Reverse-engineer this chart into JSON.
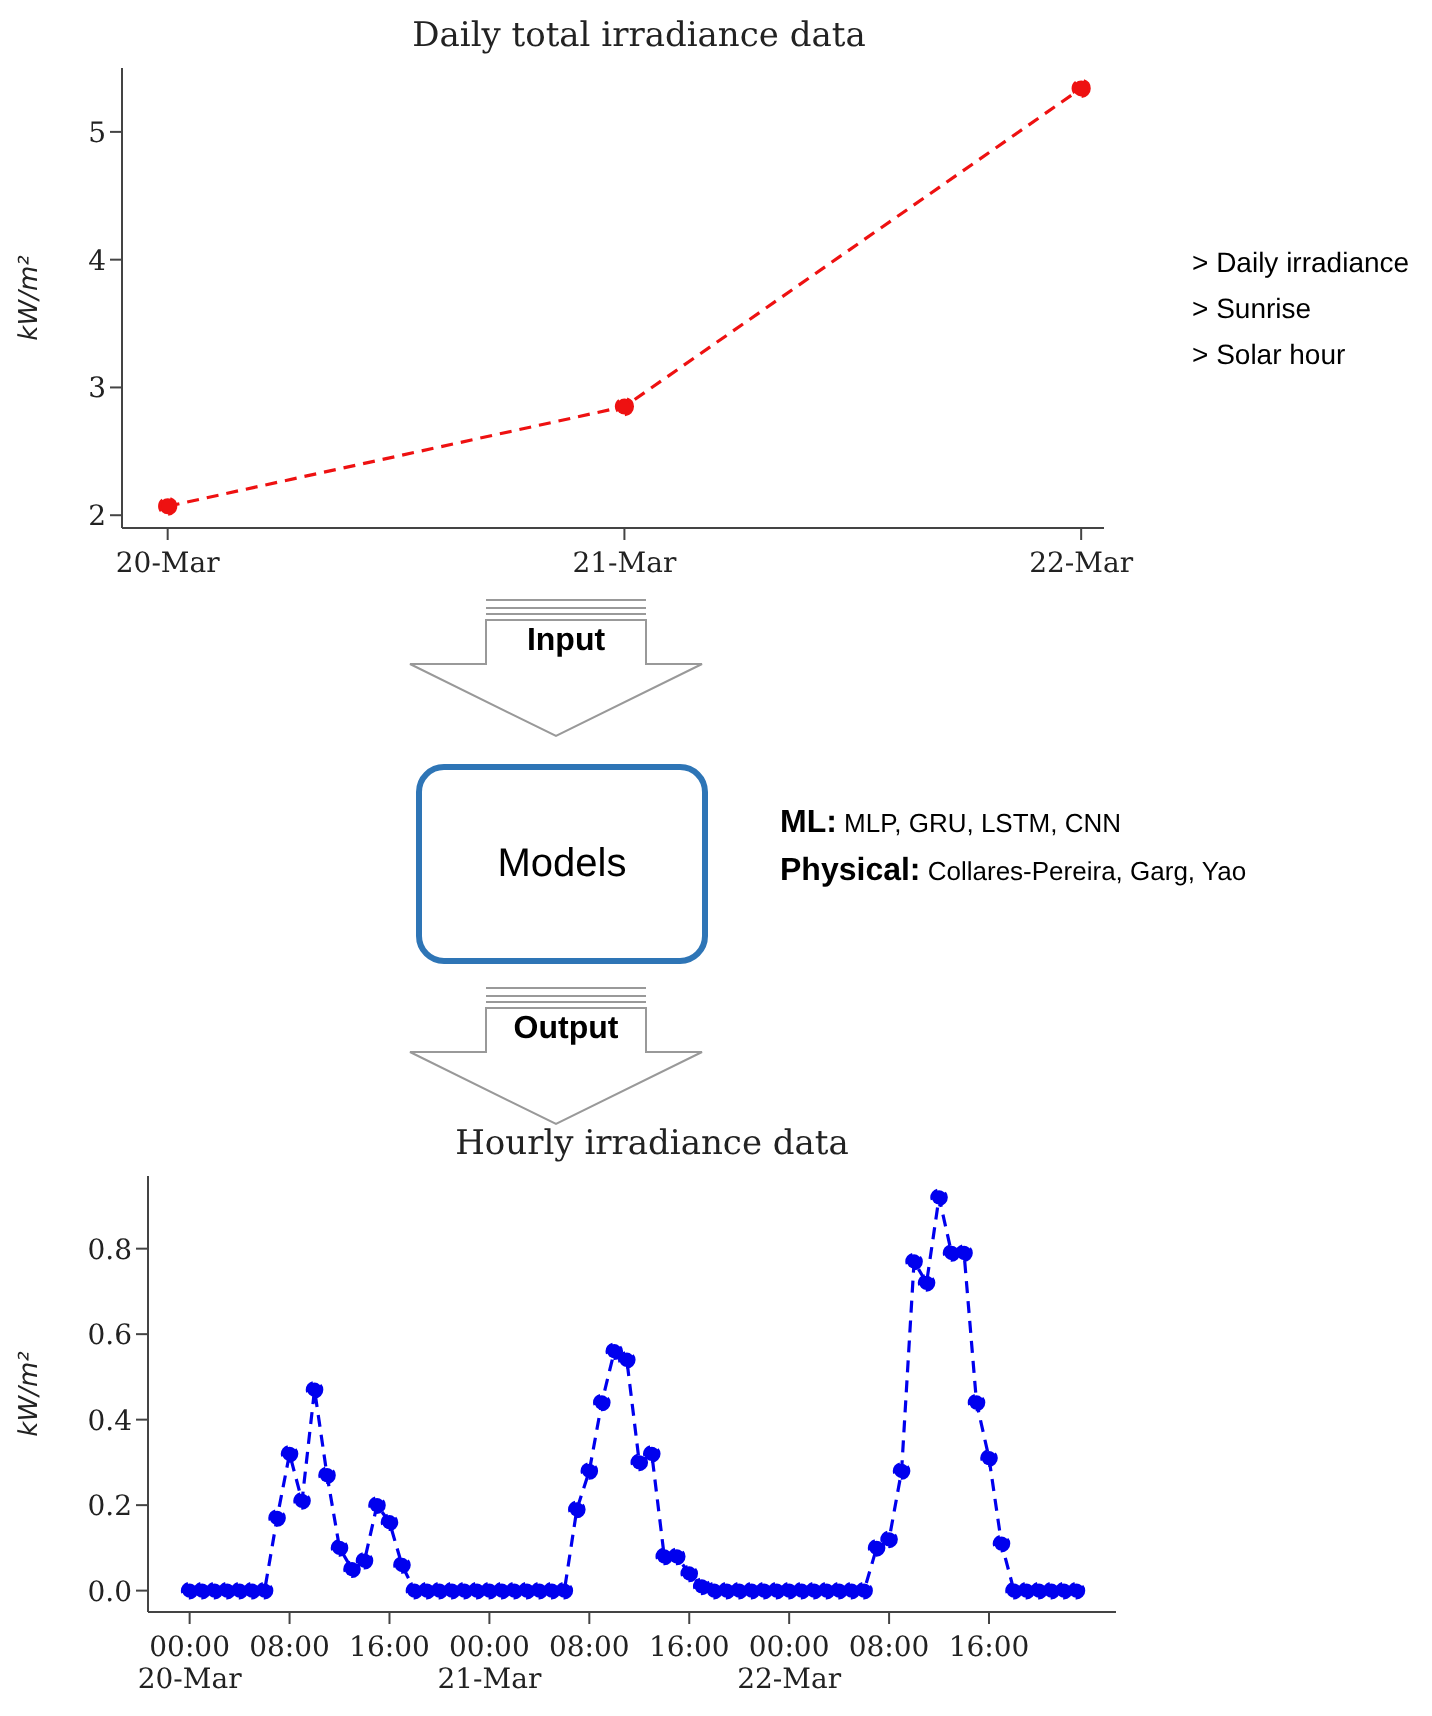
{
  "chart_data": [
    {
      "type": "line",
      "title": "Daily total irradiance data",
      "ylabel": "kW/m²",
      "categories": [
        "20-Mar",
        "21-Mar",
        "22-Mar"
      ],
      "values": [
        2.07,
        2.85,
        5.34
      ],
      "color": "#ee1111",
      "ylim": [
        1.9,
        5.5
      ],
      "yticks": [
        2,
        3,
        4,
        5
      ],
      "marker": "circle",
      "line_style": "dashed",
      "annotations": [
        "> Daily irradiance",
        "> Sunrise",
        "> Solar hour"
      ]
    },
    {
      "type": "other",
      "annotations": [
        "Input",
        "Models",
        "Output",
        "ML: MLP, GRU, LSTM, CNN",
        "Physical: Collares-Pereira, Garg, Yao"
      ]
    },
    {
      "type": "line",
      "title": "Hourly irradiance data",
      "ylabel": "kW/m²",
      "x": [
        "--03-20T00:00",
        "--03-20T01:00",
        "--03-20T02:00",
        "--03-20T03:00",
        "--03-20T04:00",
        "--03-20T05:00",
        "--03-20T06:00",
        "--03-20T07:00",
        "--03-20T08:00",
        "--03-20T09:00",
        "--03-20T10:00",
        "--03-20T11:00",
        "--03-20T12:00",
        "--03-20T13:00",
        "--03-20T14:00",
        "--03-20T15:00",
        "--03-20T16:00",
        "--03-20T17:00",
        "--03-20T18:00",
        "--03-20T19:00",
        "--03-20T20:00",
        "--03-20T21:00",
        "--03-20T22:00",
        "--03-20T23:00",
        "--03-21T00:00",
        "--03-21T01:00",
        "--03-21T02:00",
        "--03-21T03:00",
        "--03-21T04:00",
        "--03-21T05:00",
        "--03-21T06:00",
        "--03-21T07:00",
        "--03-21T08:00",
        "--03-21T09:00",
        "--03-21T10:00",
        "--03-21T11:00",
        "--03-21T12:00",
        "--03-21T13:00",
        "--03-21T14:00",
        "--03-21T15:00",
        "--03-21T16:00",
        "--03-21T17:00",
        "--03-21T18:00",
        "--03-21T19:00",
        "--03-21T20:00",
        "--03-21T21:00",
        "--03-21T22:00",
        "--03-21T23:00",
        "--03-22T00:00",
        "--03-22T01:00",
        "--03-22T02:00",
        "--03-22T03:00",
        "--03-22T04:00",
        "--03-22T05:00",
        "--03-22T06:00",
        "--03-22T07:00",
        "--03-22T08:00",
        "--03-22T09:00",
        "--03-22T10:00",
        "--03-22T11:00",
        "--03-22T12:00",
        "--03-22T13:00",
        "--03-22T14:00",
        "--03-22T15:00",
        "--03-22T16:00",
        "--03-22T17:00",
        "--03-22T18:00",
        "--03-22T19:00",
        "--03-22T20:00",
        "--03-22T21:00",
        "--03-22T22:00",
        "--03-22T23:00"
      ],
      "values": [
        0,
        0,
        0,
        0,
        0,
        0,
        0,
        0.17,
        0.32,
        0.21,
        0.47,
        0.27,
        0.1,
        0.05,
        0.07,
        0.2,
        0.16,
        0.06,
        0,
        0,
        0,
        0,
        0,
        0,
        0,
        0,
        0,
        0,
        0,
        0,
        0,
        0.19,
        0.28,
        0.44,
        0.56,
        0.54,
        0.3,
        0.32,
        0.08,
        0.08,
        0.04,
        0.01,
        0,
        0,
        0,
        0,
        0,
        0,
        0,
        0,
        0,
        0,
        0,
        0,
        0,
        0.1,
        0.12,
        0.28,
        0.77,
        0.72,
        0.92,
        0.79,
        0.79,
        0.44,
        0.31,
        0.11,
        0,
        0,
        0,
        0,
        0,
        0
      ],
      "color": "#0000ee",
      "xlim": [
        "--03-19T20:40",
        "--03-23T02:10"
      ],
      "xticks": [
        {
          "value": "--03-20T00:00",
          "label": "00:00\n20-Mar"
        },
        {
          "value": "--03-20T08:00",
          "label": "08:00"
        },
        {
          "value": "--03-20T16:00",
          "label": "16:00"
        },
        {
          "value": "--03-21T00:00",
          "label": "00:00\n21-Mar"
        },
        {
          "value": "--03-21T08:00",
          "label": "08:00"
        },
        {
          "value": "--03-21T16:00",
          "label": "16:00"
        },
        {
          "value": "--03-22T00:00",
          "label": "00:00\n22-Mar"
        },
        {
          "value": "--03-22T08:00",
          "label": "08:00"
        },
        {
          "value": "--03-22T16:00",
          "label": "16:00"
        }
      ],
      "ylim": [
        -0.05,
        0.97
      ],
      "yticks": [
        {
          "value": 0,
          "label": "0.0"
        },
        0.2,
        0.4,
        0.6,
        0.8
      ],
      "marker": "circle",
      "line_style": "dashed"
    }
  ]
}
